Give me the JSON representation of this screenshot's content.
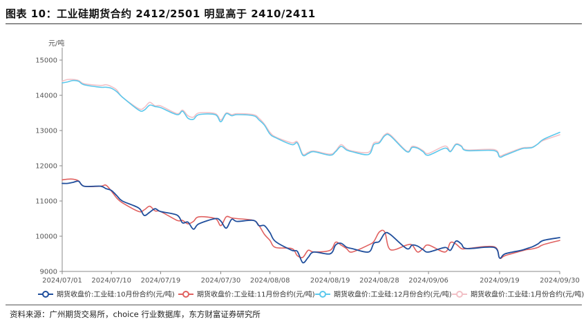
{
  "header": {
    "title": "图表 10：工业硅期货合约 2412/2501 明显高于 2410/2411"
  },
  "footer": {
    "source": "资料来源：广州期货交易所，choice 行业数据库，东方财富证券研究所"
  },
  "chart_data": {
    "type": "line",
    "ylabel": "元/吨",
    "ylim": [
      9000,
      15000
    ],
    "yticks": [
      9000,
      10000,
      11000,
      12000,
      13000,
      14000,
      15000
    ],
    "xlim": [
      "2024-07-01",
      "2024-09-30"
    ],
    "xticks": [
      "2024/07/01",
      "2024/07/10",
      "2024/07/19",
      "2024/07/30",
      "2024/08/08",
      "2024/08/19",
      "2024/08/28",
      "2024/09/06",
      "2024/09/19",
      "2024/09/30"
    ],
    "legend_position": "bottom",
    "series": [
      {
        "name": "期货收盘价:工业硅:10月份合约(元/吨)",
        "color": "#1f4e9c",
        "points": [
          [
            "2024-07-01",
            11500
          ],
          [
            "2024-07-02",
            11500
          ],
          [
            "2024-07-03",
            11530
          ],
          [
            "2024-07-04",
            11560
          ],
          [
            "2024-07-05",
            11420
          ],
          [
            "2024-07-08",
            11420
          ],
          [
            "2024-07-09",
            11350
          ],
          [
            "2024-07-10",
            11300
          ],
          [
            "2024-07-11",
            11150
          ],
          [
            "2024-07-12",
            11000
          ],
          [
            "2024-07-15",
            10800
          ],
          [
            "2024-07-16",
            10590
          ],
          [
            "2024-07-17",
            10680
          ],
          [
            "2024-07-18",
            10780
          ],
          [
            "2024-07-19",
            10700
          ],
          [
            "2024-07-22",
            10600
          ],
          [
            "2024-07-23",
            10380
          ],
          [
            "2024-07-24",
            10400
          ],
          [
            "2024-07-25",
            10200
          ],
          [
            "2024-07-26",
            10350
          ],
          [
            "2024-07-29",
            10500
          ],
          [
            "2024-07-30",
            10430
          ],
          [
            "2024-07-31",
            10230
          ],
          [
            "2024-08-01",
            10480
          ],
          [
            "2024-08-02",
            10420
          ],
          [
            "2024-08-05",
            10450
          ],
          [
            "2024-08-06",
            10300
          ],
          [
            "2024-08-07",
            10300
          ],
          [
            "2024-08-08",
            10100
          ],
          [
            "2024-08-09",
            9850
          ],
          [
            "2024-08-12",
            9600
          ],
          [
            "2024-08-13",
            9570
          ],
          [
            "2024-08-14",
            9250
          ],
          [
            "2024-08-15",
            9400
          ],
          [
            "2024-08-16",
            9550
          ],
          [
            "2024-08-19",
            9500
          ],
          [
            "2024-08-20",
            9750
          ],
          [
            "2024-08-21",
            9800
          ],
          [
            "2024-08-22",
            9690
          ],
          [
            "2024-08-23",
            9650
          ],
          [
            "2024-08-26",
            9550
          ],
          [
            "2024-08-27",
            9800
          ],
          [
            "2024-08-28",
            9850
          ],
          [
            "2024-08-29",
            10080
          ],
          [
            "2024-08-30",
            10050
          ],
          [
            "2024-09-02",
            9650
          ],
          [
            "2024-09-03",
            9750
          ],
          [
            "2024-09-04",
            9720
          ],
          [
            "2024-09-05",
            9620
          ],
          [
            "2024-09-06",
            9550
          ],
          [
            "2024-09-09",
            9680
          ],
          [
            "2024-09-10",
            9600
          ],
          [
            "2024-09-11",
            9860
          ],
          [
            "2024-09-12",
            9780
          ],
          [
            "2024-09-13",
            9650
          ],
          [
            "2024-09-18",
            9680
          ],
          [
            "2024-09-19",
            9380
          ],
          [
            "2024-09-20",
            9500
          ],
          [
            "2024-09-23",
            9600
          ],
          [
            "2024-09-24",
            9650
          ],
          [
            "2024-09-25",
            9700
          ],
          [
            "2024-09-26",
            9780
          ],
          [
            "2024-09-27",
            9880
          ],
          [
            "2024-09-30",
            9960
          ]
        ]
      },
      {
        "name": "期货收盘价:工业硅:11月份合约(元/吨)",
        "color": "#e0605f",
        "points": [
          [
            "2024-07-01",
            11600
          ],
          [
            "2024-07-02",
            11620
          ],
          [
            "2024-07-03",
            11620
          ],
          [
            "2024-07-04",
            11570
          ],
          [
            "2024-07-05",
            11420
          ],
          [
            "2024-07-08",
            11420
          ],
          [
            "2024-07-09",
            11450
          ],
          [
            "2024-07-10",
            11280
          ],
          [
            "2024-07-11",
            11080
          ],
          [
            "2024-07-12",
            10950
          ],
          [
            "2024-07-15",
            10700
          ],
          [
            "2024-07-16",
            10750
          ],
          [
            "2024-07-17",
            10850
          ],
          [
            "2024-07-18",
            10720
          ],
          [
            "2024-07-19",
            10700
          ],
          [
            "2024-07-22",
            10450
          ],
          [
            "2024-07-23",
            10450
          ],
          [
            "2024-07-24",
            10350
          ],
          [
            "2024-07-25",
            10420
          ],
          [
            "2024-07-26",
            10550
          ],
          [
            "2024-07-29",
            10500
          ],
          [
            "2024-07-30",
            10300
          ],
          [
            "2024-07-31",
            10550
          ],
          [
            "2024-08-01",
            10520
          ],
          [
            "2024-08-02",
            10500
          ],
          [
            "2024-08-05",
            10450
          ],
          [
            "2024-08-06",
            10300
          ],
          [
            "2024-08-07",
            10050
          ],
          [
            "2024-08-08",
            9880
          ],
          [
            "2024-08-09",
            9680
          ],
          [
            "2024-08-12",
            9650
          ],
          [
            "2024-08-13",
            9450
          ],
          [
            "2024-08-14",
            9400
          ],
          [
            "2024-08-15",
            9600
          ],
          [
            "2024-08-16",
            9550
          ],
          [
            "2024-08-19",
            9600
          ],
          [
            "2024-08-20",
            9830
          ],
          [
            "2024-08-21",
            9750
          ],
          [
            "2024-08-22",
            9650
          ],
          [
            "2024-08-23",
            9550
          ],
          [
            "2024-08-26",
            9750
          ],
          [
            "2024-08-27",
            9850
          ],
          [
            "2024-08-28",
            10120
          ],
          [
            "2024-08-29",
            10120
          ],
          [
            "2024-08-30",
            9620
          ],
          [
            "2024-09-02",
            9750
          ],
          [
            "2024-09-03",
            9750
          ],
          [
            "2024-09-04",
            9550
          ],
          [
            "2024-09-05",
            9650
          ],
          [
            "2024-09-06",
            9750
          ],
          [
            "2024-09-09",
            9550
          ],
          [
            "2024-09-10",
            9820
          ],
          [
            "2024-09-11",
            9780
          ],
          [
            "2024-09-12",
            9650
          ],
          [
            "2024-09-13",
            9650
          ],
          [
            "2024-09-18",
            9700
          ],
          [
            "2024-09-19",
            9380
          ],
          [
            "2024-09-20",
            9450
          ],
          [
            "2024-09-23",
            9580
          ],
          [
            "2024-09-24",
            9620
          ],
          [
            "2024-09-25",
            9640
          ],
          [
            "2024-09-26",
            9680
          ],
          [
            "2024-09-27",
            9760
          ],
          [
            "2024-09-30",
            9880
          ]
        ]
      },
      {
        "name": "期货收盘价:工业硅:12月份合约(元/吨)",
        "color": "#5bc8ec",
        "points": [
          [
            "2024-07-01",
            14350
          ],
          [
            "2024-07-02",
            14380
          ],
          [
            "2024-07-03",
            14420
          ],
          [
            "2024-07-04",
            14400
          ],
          [
            "2024-07-05",
            14300
          ],
          [
            "2024-07-08",
            14230
          ],
          [
            "2024-07-09",
            14230
          ],
          [
            "2024-07-10",
            14200
          ],
          [
            "2024-07-11",
            14100
          ],
          [
            "2024-07-12",
            13950
          ],
          [
            "2024-07-15",
            13580
          ],
          [
            "2024-07-16",
            13580
          ],
          [
            "2024-07-17",
            13720
          ],
          [
            "2024-07-18",
            13680
          ],
          [
            "2024-07-19",
            13650
          ],
          [
            "2024-07-22",
            13450
          ],
          [
            "2024-07-23",
            13550
          ],
          [
            "2024-07-24",
            13350
          ],
          [
            "2024-07-25",
            13320
          ],
          [
            "2024-07-26",
            13450
          ],
          [
            "2024-07-29",
            13450
          ],
          [
            "2024-07-30",
            13250
          ],
          [
            "2024-07-31",
            13480
          ],
          [
            "2024-08-01",
            13420
          ],
          [
            "2024-08-02",
            13450
          ],
          [
            "2024-08-05",
            13420
          ],
          [
            "2024-08-06",
            13300
          ],
          [
            "2024-08-07",
            13150
          ],
          [
            "2024-08-08",
            12900
          ],
          [
            "2024-08-09",
            12800
          ],
          [
            "2024-08-12",
            12600
          ],
          [
            "2024-08-13",
            12650
          ],
          [
            "2024-08-14",
            12300
          ],
          [
            "2024-08-15",
            12350
          ],
          [
            "2024-08-16",
            12400
          ],
          [
            "2024-08-19",
            12300
          ],
          [
            "2024-08-20",
            12400
          ],
          [
            "2024-08-21",
            12550
          ],
          [
            "2024-08-22",
            12450
          ],
          [
            "2024-08-23",
            12400
          ],
          [
            "2024-08-26",
            12320
          ],
          [
            "2024-08-27",
            12600
          ],
          [
            "2024-08-28",
            12650
          ],
          [
            "2024-08-29",
            12850
          ],
          [
            "2024-08-30",
            12850
          ],
          [
            "2024-09-02",
            12400
          ],
          [
            "2024-09-03",
            12520
          ],
          [
            "2024-09-04",
            12500
          ],
          [
            "2024-09-05",
            12400
          ],
          [
            "2024-09-06",
            12300
          ],
          [
            "2024-09-09",
            12500
          ],
          [
            "2024-09-10",
            12400
          ],
          [
            "2024-09-11",
            12600
          ],
          [
            "2024-09-12",
            12550
          ],
          [
            "2024-09-13",
            12430
          ],
          [
            "2024-09-18",
            12430
          ],
          [
            "2024-09-19",
            12250
          ],
          [
            "2024-09-20",
            12300
          ],
          [
            "2024-09-23",
            12480
          ],
          [
            "2024-09-24",
            12500
          ],
          [
            "2024-09-25",
            12520
          ],
          [
            "2024-09-26",
            12620
          ],
          [
            "2024-09-27",
            12750
          ],
          [
            "2024-09-30",
            12950
          ]
        ]
      },
      {
        "name": "期货收盘价:工业硅:1月份合约(元/吨)",
        "color": "#f2c0c6",
        "points": [
          [
            "2024-07-01",
            14400
          ],
          [
            "2024-07-02",
            14450
          ],
          [
            "2024-07-03",
            14450
          ],
          [
            "2024-07-04",
            14420
          ],
          [
            "2024-07-05",
            14330
          ],
          [
            "2024-07-08",
            14280
          ],
          [
            "2024-07-09",
            14300
          ],
          [
            "2024-07-10",
            14250
          ],
          [
            "2024-07-11",
            14150
          ],
          [
            "2024-07-12",
            13950
          ],
          [
            "2024-07-15",
            13620
          ],
          [
            "2024-07-16",
            13650
          ],
          [
            "2024-07-17",
            13800
          ],
          [
            "2024-07-18",
            13700
          ],
          [
            "2024-07-19",
            13700
          ],
          [
            "2024-07-22",
            13480
          ],
          [
            "2024-07-23",
            13580
          ],
          [
            "2024-07-24",
            13420
          ],
          [
            "2024-07-25",
            13380
          ],
          [
            "2024-07-26",
            13500
          ],
          [
            "2024-07-29",
            13480
          ],
          [
            "2024-07-30",
            13300
          ],
          [
            "2024-07-31",
            13500
          ],
          [
            "2024-08-01",
            13450
          ],
          [
            "2024-08-02",
            13480
          ],
          [
            "2024-08-05",
            13450
          ],
          [
            "2024-08-06",
            13350
          ],
          [
            "2024-08-07",
            13180
          ],
          [
            "2024-08-08",
            12950
          ],
          [
            "2024-08-09",
            12820
          ],
          [
            "2024-08-12",
            12650
          ],
          [
            "2024-08-13",
            12680
          ],
          [
            "2024-08-14",
            12330
          ],
          [
            "2024-08-15",
            12380
          ],
          [
            "2024-08-16",
            12420
          ],
          [
            "2024-08-19",
            12330
          ],
          [
            "2024-08-20",
            12420
          ],
          [
            "2024-08-21",
            12600
          ],
          [
            "2024-08-22",
            12480
          ],
          [
            "2024-08-23",
            12420
          ],
          [
            "2024-08-26",
            12380
          ],
          [
            "2024-08-27",
            12650
          ],
          [
            "2024-08-28",
            12680
          ],
          [
            "2024-08-29",
            12880
          ],
          [
            "2024-08-30",
            12880
          ],
          [
            "2024-09-02",
            12420
          ],
          [
            "2024-09-03",
            12550
          ],
          [
            "2024-09-04",
            12520
          ],
          [
            "2024-09-05",
            12430
          ],
          [
            "2024-09-06",
            12350
          ],
          [
            "2024-09-09",
            12560
          ],
          [
            "2024-09-10",
            12420
          ],
          [
            "2024-09-11",
            12620
          ],
          [
            "2024-09-12",
            12570
          ],
          [
            "2024-09-13",
            12450
          ],
          [
            "2024-09-18",
            12460
          ],
          [
            "2024-09-19",
            12280
          ],
          [
            "2024-09-20",
            12330
          ],
          [
            "2024-09-23",
            12500
          ],
          [
            "2024-09-24",
            12520
          ],
          [
            "2024-09-25",
            12530
          ],
          [
            "2024-09-26",
            12620
          ],
          [
            "2024-09-27",
            12720
          ],
          [
            "2024-09-30",
            12880
          ]
        ]
      }
    ]
  }
}
